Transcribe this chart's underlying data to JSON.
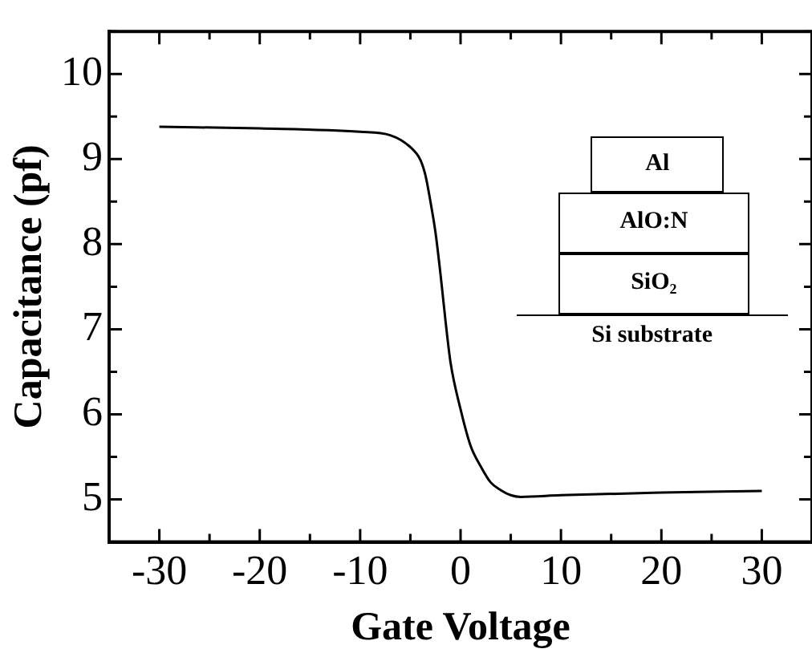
{
  "chart_data": {
    "type": "line",
    "xlabel": "Gate Voltage",
    "ylabel": "Capacitance (pf)",
    "x": [
      -30,
      -20,
      -10,
      -7,
      -5,
      -4,
      -3.5,
      -3,
      -2.5,
      -2,
      -1.5,
      -1,
      0,
      1,
      2,
      3,
      4,
      5,
      6,
      10,
      20,
      30
    ],
    "values": [
      9.38,
      9.36,
      9.32,
      9.28,
      9.14,
      8.99,
      8.81,
      8.5,
      8.14,
      7.65,
      7.1,
      6.61,
      6.06,
      5.63,
      5.39,
      5.2,
      5.11,
      5.05,
      5.03,
      5.05,
      5.08,
      5.1
    ],
    "color": "#000000",
    "marker": "none",
    "line_style": "solid",
    "grid": false,
    "xlim": [
      -35,
      35
    ],
    "ylim": [
      4.5,
      10.5
    ],
    "xticks": [
      -30,
      -20,
      -10,
      0,
      10,
      20,
      30
    ],
    "yticks": [
      5,
      6,
      7,
      8,
      9,
      10
    ],
    "annotations": [
      "Al",
      "AlO:N",
      "SiO₂",
      "Si substrate"
    ]
  }
}
